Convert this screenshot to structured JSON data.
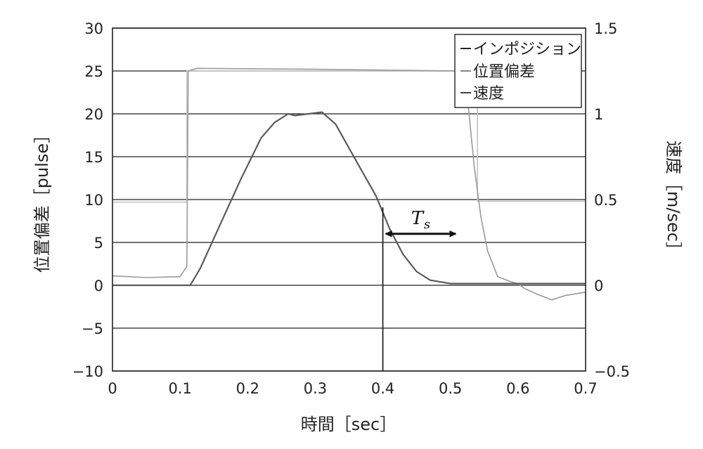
{
  "chart_data": {
    "type": "line",
    "title": "",
    "xlabel": "時間［sec］",
    "ylabel_left": "位置偏差［pulse］",
    "ylabel_right": "速度［m/sec］",
    "xlim": [
      0,
      0.7
    ],
    "ylim_left": [
      -10,
      30
    ],
    "ylim_right": [
      -0.5,
      1.5
    ],
    "x_ticks": [
      "0",
      "0.1",
      "0.2",
      "0.3",
      "0.4",
      "0.5",
      "0.6",
      "0.7"
    ],
    "y_left_ticks": [
      "−10",
      "−5",
      "0",
      "5",
      "10",
      "15",
      "20",
      "25",
      "30"
    ],
    "y_right_ticks": [
      "−0.5",
      "0",
      "0.5",
      "1",
      "1.5"
    ],
    "grid": "horizontal",
    "legend_position": "top-right",
    "series": [
      {
        "name": "インポジション",
        "axis": "left",
        "color": "#c4c4c4",
        "points": [
          [
            0.0,
            9.7
          ],
          [
            0.11,
            9.7
          ],
          [
            0.11,
            25.0
          ],
          [
            0.54,
            25.0
          ],
          [
            0.54,
            9.8
          ],
          [
            0.7,
            9.8
          ]
        ]
      },
      {
        "name": "位置偏差",
        "axis": "left",
        "color": "#9a9a9a",
        "points": [
          [
            0.0,
            1.1
          ],
          [
            0.05,
            0.9
          ],
          [
            0.1,
            1.0
          ],
          [
            0.11,
            2.2
          ],
          [
            0.112,
            25.0
          ],
          [
            0.125,
            25.3
          ],
          [
            0.3,
            25.2
          ],
          [
            0.51,
            25.0
          ],
          [
            0.525,
            22.0
          ],
          [
            0.535,
            14.0
          ],
          [
            0.545,
            8.0
          ],
          [
            0.555,
            4.0
          ],
          [
            0.57,
            1.0
          ],
          [
            0.59,
            0.4
          ],
          [
            0.6,
            0.2
          ],
          [
            0.61,
            -0.4
          ],
          [
            0.63,
            -1.1
          ],
          [
            0.65,
            -1.7
          ],
          [
            0.67,
            -1.2
          ],
          [
            0.7,
            -0.8
          ]
        ]
      },
      {
        "name": "速度",
        "axis": "right",
        "color": "#5a5a5a",
        "points": [
          [
            0.0,
            0.0
          ],
          [
            0.115,
            0.0
          ],
          [
            0.13,
            0.1
          ],
          [
            0.16,
            0.36
          ],
          [
            0.19,
            0.62
          ],
          [
            0.22,
            0.86
          ],
          [
            0.24,
            0.95
          ],
          [
            0.26,
            1.0
          ],
          [
            0.27,
            0.99
          ],
          [
            0.29,
            1.0
          ],
          [
            0.31,
            1.01
          ],
          [
            0.33,
            0.94
          ],
          [
            0.35,
            0.8
          ],
          [
            0.37,
            0.66
          ],
          [
            0.39,
            0.52
          ],
          [
            0.41,
            0.33
          ],
          [
            0.43,
            0.18
          ],
          [
            0.45,
            0.08
          ],
          [
            0.47,
            0.03
          ],
          [
            0.5,
            0.01
          ],
          [
            0.7,
            0.01
          ]
        ]
      }
    ],
    "annotations": [
      {
        "type": "vline",
        "x": 0.4,
        "y_left_range": [
          -10,
          9.1
        ]
      },
      {
        "type": "double-arrow",
        "label": "T",
        "label_sub": "s",
        "x_start": 0.4,
        "x_end": 0.51,
        "y_left": 6.0
      }
    ]
  }
}
